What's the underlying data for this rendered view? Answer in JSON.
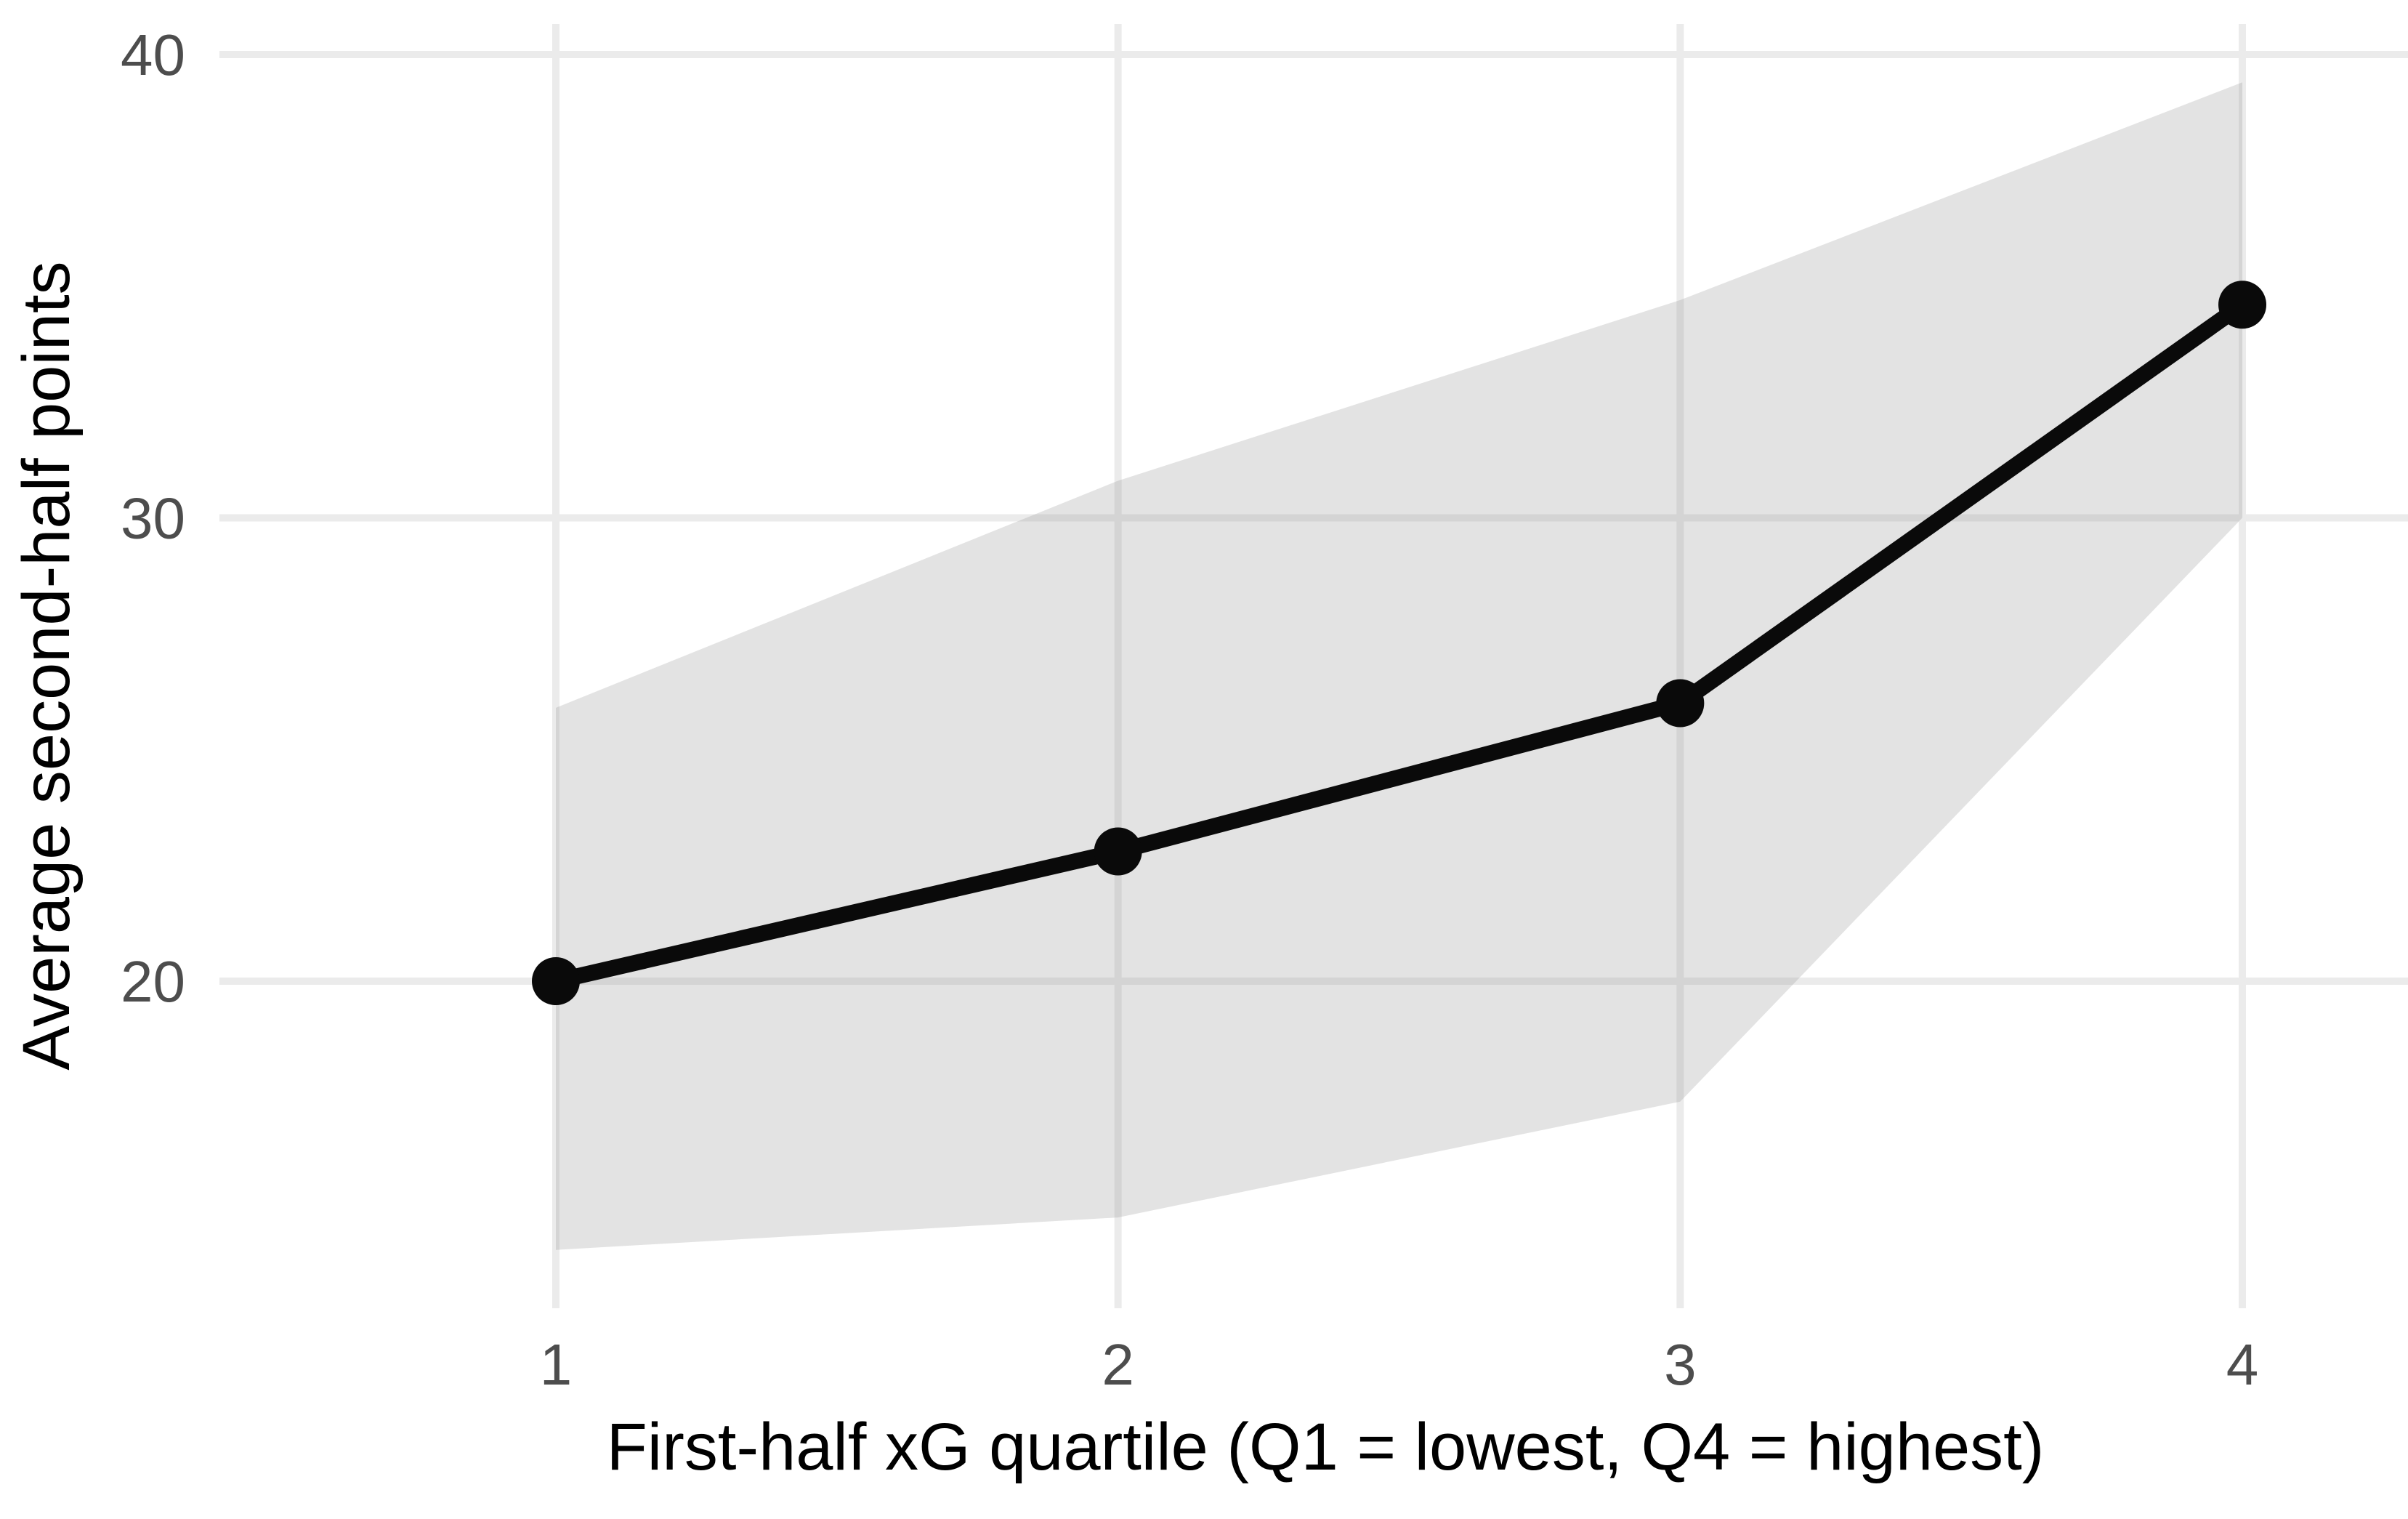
{
  "chart_data": {
    "type": "line",
    "title": "",
    "xlabel": "First-half xG quartile (Q1 = lowest, Q4 = highest)",
    "ylabel": "Average second-half points",
    "x": [
      1,
      2,
      3,
      4
    ],
    "series": [
      {
        "name": "average-second-half-points",
        "values": [
          20.0,
          22.8,
          26.0,
          34.6
        ]
      }
    ],
    "ribbon": {
      "upper": [
        25.9,
        30.8,
        34.7,
        39.4
      ],
      "lower": [
        14.2,
        14.9,
        17.4,
        30.0
      ]
    },
    "xticks": [
      "1",
      "2",
      "3",
      "4"
    ],
    "yticks": [
      "20",
      "30",
      "40"
    ],
    "ytick_values": [
      20,
      30,
      40
    ],
    "xlim": [
      0.4,
      4.3
    ],
    "ylim": [
      12.9,
      40.7
    ],
    "grid": true,
    "legend": false,
    "colors": {
      "line": "#0A0A0A",
      "point": "#0A0A0A",
      "ribbon_fill": "#E2E2E2",
      "grid": "#EBEBEB",
      "tick_label": "#4D4D4D",
      "axis_title": "#000000",
      "background": "#FFFFFF"
    }
  }
}
